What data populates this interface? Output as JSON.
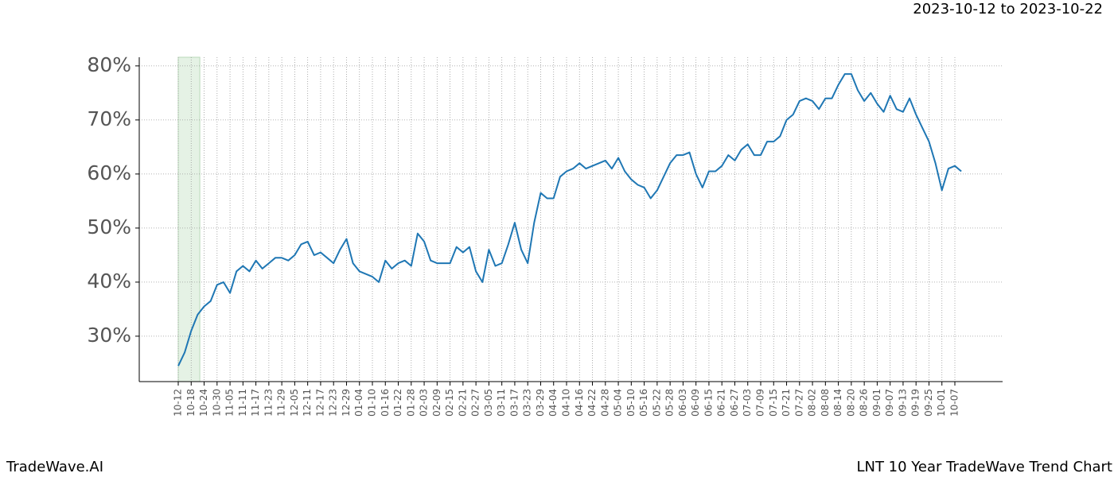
{
  "chart_data": {
    "type": "line",
    "title": "2023-10-12 to 2023-10-22",
    "brand": "TradeWave.AI",
    "caption": "LNT 10 Year TradeWave Trend Chart",
    "highlight": [
      "2023-10-12",
      "2023-10-22"
    ],
    "highlight_color": "#e5f2e5",
    "grid": true,
    "categories": [
      "10-12",
      null,
      "10-18",
      null,
      "10-24",
      null,
      "10-30",
      null,
      "11-05",
      null,
      "11-11",
      null,
      "11-17",
      null,
      "11-23",
      null,
      "11-29",
      null,
      "12-05",
      null,
      "12-11",
      null,
      "12-17",
      null,
      "12-23",
      null,
      "12-29",
      null,
      "01-04",
      null,
      "01-10",
      null,
      "01-16",
      null,
      "01-22",
      null,
      "01-28",
      null,
      "02-03",
      null,
      "02-09",
      null,
      "02-15",
      null,
      "02-21",
      null,
      "02-27",
      null,
      "03-05",
      null,
      "03-11",
      null,
      "03-17",
      null,
      "03-23",
      null,
      "03-29",
      null,
      "04-04",
      null,
      "04-10",
      null,
      "04-16",
      null,
      "04-22",
      null,
      "04-28",
      null,
      "05-04",
      null,
      "05-10",
      null,
      "05-16",
      null,
      "05-22",
      null,
      "05-28",
      null,
      "06-03",
      null,
      "06-09",
      null,
      "06-15",
      null,
      "06-21",
      null,
      "06-27",
      null,
      "07-03",
      null,
      "07-09",
      null,
      "07-15",
      null,
      "07-21",
      null,
      "07-27",
      null,
      "08-02",
      null,
      "08-08",
      null,
      "08-14",
      null,
      "08-20",
      null,
      "08-26",
      null,
      "09-01",
      null,
      "09-07",
      null,
      "09-13",
      null,
      "09-19",
      null,
      "09-25",
      null,
      "10-01",
      null,
      "10-07",
      null
    ],
    "series": [
      {
        "color": "#1f77b4",
        "values": [
          24.5,
          27,
          31,
          34,
          35.5,
          36.5,
          39.5,
          40,
          38,
          42,
          43,
          42,
          44,
          42.5,
          43.5,
          44.5,
          44.5,
          44,
          45,
          47,
          47.5,
          45,
          45.5,
          44.5,
          43.5,
          46,
          48,
          43.5,
          42,
          41.5,
          41,
          40,
          44,
          42.5,
          43.5,
          44,
          43,
          49,
          47.5,
          44,
          43.5,
          43.5,
          43.5,
          46.5,
          45.5,
          46.5,
          42,
          40,
          46,
          43,
          43.5,
          47,
          51,
          46,
          43.5,
          51,
          56.5,
          55.5,
          55.5,
          59.5,
          60.5,
          61,
          62,
          61,
          61.5,
          62,
          62.5,
          61,
          63,
          60.5,
          59,
          58,
          57.5,
          55.5,
          57,
          59.5,
          62,
          63.5,
          63.5,
          64,
          60,
          57.5,
          60.5,
          60.5,
          61.5,
          63.5,
          62.5,
          64.5,
          65.5,
          63.5,
          63.5,
          66,
          66,
          67,
          70,
          71,
          73.5,
          74,
          73.5,
          72,
          74,
          74,
          76.5,
          78.5,
          78.5,
          75.5,
          73.5,
          75,
          73,
          71.5,
          74.5,
          72,
          71.5,
          74,
          71,
          68.5,
          66,
          62,
          57,
          61,
          61.5,
          60.5
        ]
      }
    ],
    "ylim": [
      21.6,
      81.6
    ],
    "yticks": [
      {
        "value": 30,
        "label": "30%"
      },
      {
        "value": 40,
        "label": "40%"
      },
      {
        "value": 50,
        "label": "50%"
      },
      {
        "value": 60,
        "label": "60%"
      },
      {
        "value": 70,
        "label": "70%"
      },
      {
        "value": 80,
        "label": "80%"
      }
    ]
  }
}
